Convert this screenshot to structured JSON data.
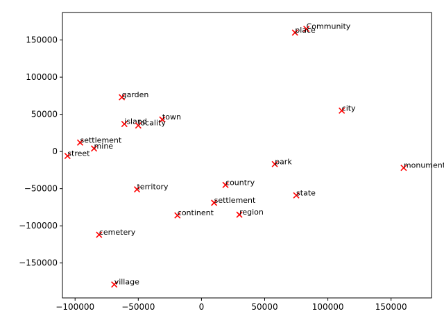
{
  "chart_data": {
    "type": "scatter",
    "title": "",
    "xlabel": "",
    "ylabel": "",
    "xlim": [
      -110000,
      182000
    ],
    "ylim": [
      -197000,
      187000
    ],
    "x_ticks": [
      -100000,
      -50000,
      0,
      50000,
      100000,
      150000
    ],
    "x_tick_labels": [
      "−100000",
      "−50000",
      "0",
      "50000",
      "100000",
      "150000"
    ],
    "y_ticks": [
      -150000,
      -100000,
      -50000,
      0,
      50000,
      100000,
      150000
    ],
    "y_tick_labels": [
      "−150000",
      "−100000",
      "−50000",
      "0",
      "50000",
      "100000",
      "150000"
    ],
    "grid": false,
    "marker": "x",
    "marker_color": "#ff0000",
    "points": [
      {
        "label": "Community",
        "x": 83000,
        "y": 165000
      },
      {
        "label": "place",
        "x": 74000,
        "y": 160000
      },
      {
        "label": "city",
        "x": 111000,
        "y": 55000
      },
      {
        "label": "garden",
        "x": -63000,
        "y": 73000
      },
      {
        "label": "town",
        "x": -31000,
        "y": 43000
      },
      {
        "label": "island",
        "x": -61000,
        "y": 37000
      },
      {
        "label": "locality",
        "x": -50000,
        "y": 35000
      },
      {
        "label": "settlement",
        "x": -96000,
        "y": 12000
      },
      {
        "label": "mine",
        "x": -85000,
        "y": 4000
      },
      {
        "label": "street",
        "x": -106000,
        "y": -6000
      },
      {
        "label": "monument",
        "x": 160000,
        "y": -22000
      },
      {
        "label": "park",
        "x": 58000,
        "y": -17000
      },
      {
        "label": "country",
        "x": 19000,
        "y": -45000
      },
      {
        "label": "territory",
        "x": -51000,
        "y": -51000
      },
      {
        "label": "state",
        "x": 75000,
        "y": -59000
      },
      {
        "label": "settlement",
        "x": 10000,
        "y": -69000
      },
      {
        "label": "continent",
        "x": -19000,
        "y": -86000
      },
      {
        "label": "region",
        "x": 30000,
        "y": -85000
      },
      {
        "label": "cemetery",
        "x": -81000,
        "y": -112000
      },
      {
        "label": "village",
        "x": -69000,
        "y": -179000
      }
    ]
  }
}
